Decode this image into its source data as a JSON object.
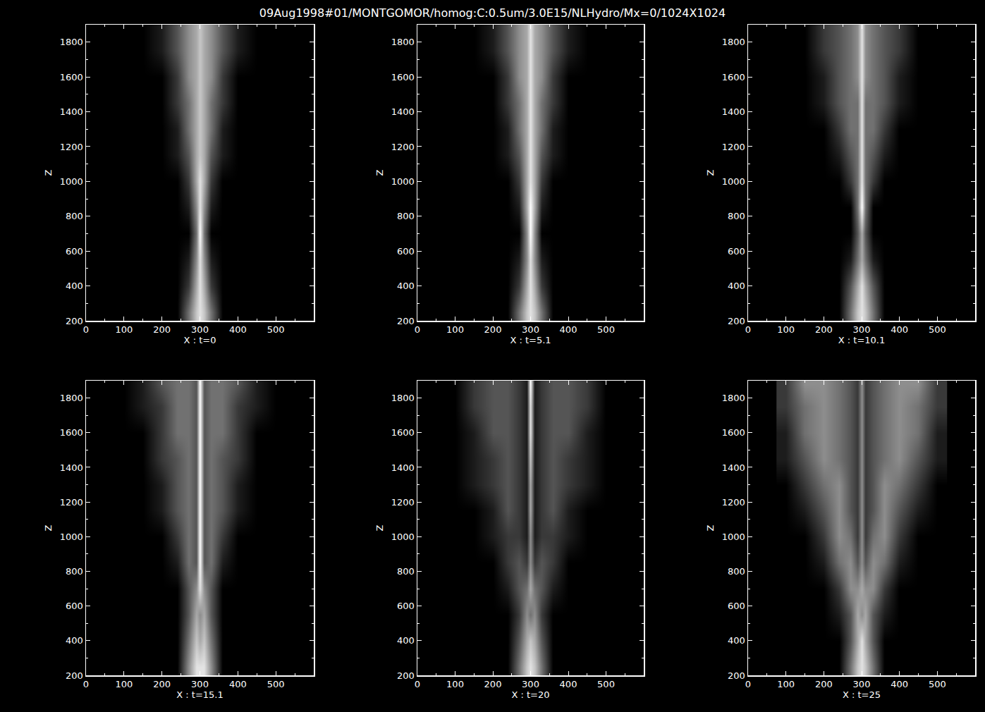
{
  "chart_data": {
    "type": "heatmap",
    "title": "09Aug1998#01/MONTGOMOR/homog:C:0.5um/3.0E15/NLHydro/Mx=0/1024X1024",
    "color": "#ffffff",
    "grid": false,
    "xlim": [
      0,
      600
    ],
    "ylim": [
      200,
      1900
    ],
    "xticks": [
      0,
      100,
      200,
      300,
      400,
      500
    ],
    "yticks": [
      200,
      400,
      600,
      800,
      1000,
      1200,
      1400,
      1600,
      1800
    ],
    "zlim": [
      0,
      9
    ],
    "x": [
      100,
      150,
      200,
      240,
      270,
      290,
      300,
      310,
      330,
      360,
      400,
      450,
      500
    ],
    "y": [
      250,
      400,
      550,
      700,
      850,
      1000,
      1150,
      1300,
      1450,
      1600,
      1750,
      1880
    ],
    "panels": [
      {
        "xlabel": "X : t=0",
        "ylabel": "Z",
        "z": [
          [
            0,
            0,
            0,
            0,
            4,
            7,
            8,
            7,
            4,
            0,
            0,
            0,
            0
          ],
          [
            0,
            0,
            0,
            0,
            2,
            6,
            8,
            6,
            2,
            0,
            0,
            0,
            0
          ],
          [
            0,
            0,
            0,
            0,
            1,
            5,
            8,
            5,
            1,
            0,
            0,
            0,
            0
          ],
          [
            0,
            0,
            0,
            0,
            0,
            4,
            9,
            4,
            0,
            0,
            0,
            0,
            0
          ],
          [
            0,
            0,
            0,
            0,
            1,
            5,
            8,
            5,
            1,
            0,
            0,
            0,
            0
          ],
          [
            0,
            0,
            0,
            0,
            2,
            6,
            8,
            6,
            2,
            0,
            0,
            0,
            0
          ],
          [
            0,
            0,
            0,
            1,
            3,
            6,
            7,
            6,
            3,
            1,
            0,
            0,
            0
          ],
          [
            0,
            0,
            0,
            1,
            4,
            6,
            7,
            6,
            4,
            1,
            0,
            0,
            0
          ],
          [
            0,
            0,
            0,
            2,
            4,
            6,
            7,
            6,
            4,
            2,
            0,
            0,
            0
          ],
          [
            0,
            0,
            0,
            2,
            5,
            6,
            7,
            6,
            5,
            2,
            0,
            0,
            0
          ],
          [
            0,
            0,
            1,
            3,
            5,
            6,
            7,
            6,
            5,
            3,
            1,
            0,
            0
          ],
          [
            0,
            0,
            1,
            3,
            5,
            6,
            7,
            6,
            5,
            3,
            1,
            0,
            0
          ]
        ]
      },
      {
        "xlabel": "X : t=5.1",
        "ylabel": "Z",
        "z": [
          [
            0,
            0,
            0,
            0,
            4,
            7,
            8,
            7,
            4,
            0,
            0,
            0,
            0
          ],
          [
            0,
            0,
            0,
            0,
            2,
            6,
            8,
            6,
            2,
            0,
            0,
            0,
            0
          ],
          [
            0,
            0,
            0,
            0,
            1,
            5,
            8,
            5,
            1,
            0,
            0,
            0,
            0
          ],
          [
            0,
            0,
            0,
            0,
            0,
            5,
            9,
            5,
            0,
            0,
            0,
            0,
            0
          ],
          [
            0,
            0,
            0,
            0,
            1,
            6,
            9,
            6,
            1,
            0,
            0,
            0,
            0
          ],
          [
            0,
            0,
            0,
            0,
            2,
            6,
            8,
            6,
            2,
            0,
            0,
            0,
            0
          ],
          [
            0,
            0,
            0,
            1,
            3,
            6,
            8,
            6,
            3,
            1,
            0,
            0,
            0
          ],
          [
            0,
            0,
            0,
            1,
            4,
            6,
            8,
            6,
            4,
            1,
            0,
            0,
            0
          ],
          [
            0,
            0,
            0,
            2,
            4,
            6,
            8,
            6,
            4,
            2,
            0,
            0,
            0
          ],
          [
            0,
            0,
            0,
            2,
            5,
            6,
            8,
            6,
            5,
            2,
            0,
            0,
            0
          ],
          [
            0,
            0,
            1,
            3,
            5,
            6,
            8,
            6,
            5,
            3,
            1,
            0,
            0
          ],
          [
            0,
            0,
            1,
            3,
            5,
            6,
            8,
            6,
            5,
            3,
            1,
            0,
            0
          ]
        ]
      },
      {
        "xlabel": "X : t=10.1",
        "ylabel": "Z",
        "z": [
          [
            0,
            0,
            0,
            0,
            4,
            7,
            8,
            7,
            4,
            0,
            0,
            0,
            0
          ],
          [
            0,
            0,
            0,
            0,
            3,
            6,
            8,
            6,
            3,
            0,
            0,
            0,
            0
          ],
          [
            0,
            0,
            0,
            0,
            1,
            4,
            6,
            4,
            1,
            0,
            0,
            0,
            0
          ],
          [
            0,
            0,
            0,
            0,
            0,
            3,
            6,
            3,
            0,
            0,
            0,
            0,
            0
          ],
          [
            0,
            0,
            0,
            0,
            0,
            4,
            9,
            4,
            0,
            0,
            0,
            0,
            0
          ],
          [
            0,
            0,
            0,
            0,
            2,
            4,
            8,
            4,
            2,
            0,
            0,
            0,
            0
          ],
          [
            0,
            0,
            0,
            1,
            3,
            4,
            8,
            4,
            3,
            1,
            0,
            0,
            0
          ],
          [
            0,
            0,
            0,
            2,
            4,
            4,
            8,
            4,
            4,
            2,
            0,
            0,
            0
          ],
          [
            0,
            0,
            1,
            3,
            4,
            4,
            8,
            4,
            4,
            3,
            1,
            0,
            0
          ],
          [
            0,
            0,
            1,
            3,
            4,
            5,
            8,
            5,
            4,
            3,
            1,
            0,
            0
          ],
          [
            0,
            0,
            2,
            3,
            4,
            5,
            8,
            5,
            4,
            3,
            2,
            0,
            0
          ],
          [
            0,
            0,
            2,
            3,
            4,
            5,
            8,
            5,
            4,
            3,
            2,
            0,
            0
          ]
        ]
      },
      {
        "xlabel": "X : t=15.1",
        "ylabel": "Z",
        "z": [
          [
            0,
            0,
            0,
            0,
            5,
            8,
            8,
            8,
            5,
            0,
            0,
            0,
            0
          ],
          [
            0,
            0,
            0,
            0,
            4,
            7,
            6,
            7,
            4,
            0,
            0,
            0,
            0
          ],
          [
            0,
            0,
            0,
            0,
            3,
            6,
            5,
            6,
            3,
            0,
            0,
            0,
            0
          ],
          [
            0,
            0,
            0,
            0,
            3,
            5,
            8,
            5,
            3,
            0,
            0,
            0,
            0
          ],
          [
            0,
            0,
            0,
            1,
            4,
            3,
            9,
            3,
            4,
            1,
            0,
            0,
            0
          ],
          [
            0,
            0,
            0,
            2,
            4,
            3,
            9,
            3,
            4,
            2,
            0,
            0,
            0
          ],
          [
            0,
            0,
            1,
            3,
            4,
            3,
            9,
            3,
            4,
            3,
            1,
            0,
            0
          ],
          [
            0,
            0,
            1,
            3,
            4,
            3,
            9,
            3,
            4,
            3,
            1,
            0,
            0
          ],
          [
            0,
            0,
            2,
            3,
            4,
            3,
            9,
            3,
            4,
            3,
            2,
            0,
            0
          ],
          [
            0,
            0,
            2,
            4,
            4,
            3,
            9,
            3,
            4,
            4,
            2,
            0,
            0
          ],
          [
            0,
            1,
            2,
            4,
            4,
            3,
            9,
            3,
            4,
            4,
            2,
            1,
            0
          ],
          [
            0,
            1,
            3,
            4,
            4,
            3,
            9,
            3,
            4,
            4,
            3,
            1,
            0
          ]
        ]
      },
      {
        "xlabel": "X : t=20",
        "ylabel": "Z",
        "z": [
          [
            0,
            0,
            0,
            0,
            4,
            7,
            8,
            7,
            4,
            0,
            0,
            0,
            0
          ],
          [
            0,
            0,
            0,
            0,
            3,
            6,
            7,
            6,
            3,
            0,
            0,
            0,
            0
          ],
          [
            0,
            0,
            0,
            0,
            2,
            5,
            4,
            5,
            2,
            0,
            0,
            0,
            0
          ],
          [
            0,
            0,
            0,
            1,
            3,
            4,
            6,
            4,
            3,
            1,
            0,
            0,
            0
          ],
          [
            0,
            0,
            0,
            2,
            3,
            2,
            5,
            2,
            3,
            2,
            0,
            0,
            0
          ],
          [
            0,
            0,
            1,
            2,
            2,
            1,
            5,
            1,
            2,
            2,
            1,
            0,
            0
          ],
          [
            0,
            0,
            1,
            3,
            2,
            1,
            6,
            1,
            2,
            3,
            1,
            0,
            0
          ],
          [
            0,
            1,
            2,
            3,
            2,
            1,
            6,
            1,
            2,
            3,
            2,
            1,
            0
          ],
          [
            0,
            1,
            2,
            3,
            2,
            1,
            7,
            1,
            2,
            3,
            2,
            1,
            0
          ],
          [
            0,
            1,
            3,
            3,
            2,
            1,
            8,
            1,
            2,
            3,
            3,
            1,
            0
          ],
          [
            0,
            2,
            3,
            3,
            2,
            1,
            8,
            1,
            2,
            3,
            3,
            2,
            0
          ],
          [
            0,
            2,
            3,
            3,
            2,
            1,
            9,
            1,
            2,
            3,
            3,
            2,
            0
          ]
        ]
      },
      {
        "xlabel": "X : t=25",
        "ylabel": "Z",
        "z": [
          [
            0,
            0,
            0,
            0,
            4,
            7,
            8,
            7,
            4,
            0,
            0,
            0,
            0
          ],
          [
            0,
            0,
            0,
            0,
            3,
            6,
            8,
            6,
            3,
            0,
            0,
            0,
            0
          ],
          [
            0,
            0,
            0,
            1,
            3,
            6,
            5,
            6,
            3,
            1,
            0,
            0,
            0
          ],
          [
            0,
            0,
            0,
            2,
            5,
            5,
            6,
            5,
            5,
            2,
            0,
            0,
            0
          ],
          [
            0,
            0,
            1,
            4,
            5,
            3,
            5,
            3,
            5,
            4,
            1,
            0,
            0
          ],
          [
            0,
            0,
            2,
            5,
            4,
            2,
            5,
            2,
            4,
            5,
            2,
            0,
            0
          ],
          [
            0,
            1,
            3,
            5,
            3,
            2,
            5,
            2,
            3,
            5,
            3,
            1,
            0
          ],
          [
            0,
            2,
            4,
            5,
            3,
            2,
            5,
            2,
            3,
            5,
            4,
            2,
            0
          ],
          [
            1,
            3,
            5,
            4,
            3,
            2,
            5,
            2,
            3,
            4,
            5,
            3,
            1
          ],
          [
            1,
            4,
            5,
            4,
            3,
            2,
            5,
            2,
            3,
            4,
            5,
            4,
            1
          ],
          [
            2,
            4,
            5,
            4,
            3,
            2,
            5,
            2,
            3,
            4,
            5,
            4,
            2
          ],
          [
            2,
            5,
            5,
            4,
            3,
            2,
            5,
            2,
            3,
            4,
            5,
            5,
            2
          ]
        ]
      }
    ]
  }
}
